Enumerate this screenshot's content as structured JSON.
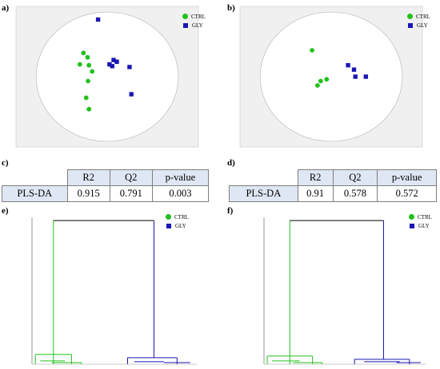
{
  "panels": {
    "a": "a)",
    "b": "b)",
    "c": "c)",
    "d": "d)",
    "e": "e)",
    "f": "f)"
  },
  "legend": [
    {
      "label": "CTRL",
      "color": "#22c01e",
      "shape": "circle"
    },
    {
      "label": "GLY",
      "color": "#1a16b4",
      "shape": "square"
    }
  ],
  "tables": [
    {
      "headers": [
        "",
        "R2",
        "Q2",
        "p-value"
      ],
      "row": [
        "PLS-DA",
        "0.915",
        "0.791",
        "0.003"
      ]
    },
    {
      "headers": [
        "",
        "R2",
        "Q2",
        "p-value"
      ],
      "row": [
        "PLS-DA",
        "0.91",
        "0.578",
        "0.572"
      ]
    }
  ],
  "chart_data": [
    {
      "type": "scatter",
      "xlim": [
        -20,
        20
      ],
      "ylim": [
        -8,
        8
      ],
      "series": [
        {
          "name": "CTRL",
          "color": "#22c01e",
          "points": [
            [
              -5.2,
              2.7
            ],
            [
              -4.3,
              2.2
            ],
            [
              -6.0,
              1.4
            ],
            [
              -4.0,
              1.3
            ],
            [
              -3.3,
              0.6
            ],
            [
              -4.2,
              -0.5
            ],
            [
              -4.6,
              -2.4
            ],
            [
              -4.0,
              -3.7
            ]
          ]
        },
        {
          "name": "GLY",
          "color": "#1a16b4",
          "points": [
            [
              -2.0,
              6.5
            ],
            [
              1.4,
              1.9
            ],
            [
              2.1,
              1.7
            ],
            [
              0.5,
              1.4
            ],
            [
              1.1,
              1.2
            ],
            [
              4.9,
              1.1
            ],
            [
              5.3,
              -2.0
            ]
          ]
        }
      ],
      "grid": false
    },
    {
      "type": "scatter",
      "xlim": [
        -20,
        20
      ],
      "ylim": [
        -8,
        8
      ],
      "series": [
        {
          "name": "CTRL",
          "color": "#22c01e",
          "points": [
            [
              -4.2,
              3.0
            ],
            [
              -1.0,
              -0.3
            ],
            [
              -2.3,
              -0.5
            ],
            [
              -3.0,
              -1.0
            ]
          ]
        },
        {
          "name": "GLY",
          "color": "#1a16b4",
          "points": [
            [
              3.7,
              1.3
            ],
            [
              5.0,
              0.8
            ],
            [
              7.6,
              0.0
            ],
            [
              5.3,
              0.0
            ]
          ]
        }
      ],
      "grid": false
    },
    {
      "type": "dendrogram",
      "ylim": [
        0,
        180
      ],
      "series": [
        {
          "name": "CTRL",
          "color": "#22c01e",
          "segments": [
            [
              [
                0.13,
                0
              ],
              [
                0.13,
                12
              ]
            ],
            [
              [
                0.02,
                12
              ],
              [
                0.24,
                12
              ]
            ],
            [
              [
                0.02,
                12
              ],
              [
                0.02,
                0
              ]
            ],
            [
              [
                0.24,
                12
              ],
              [
                0.24,
                0
              ]
            ],
            [
              [
                0.05,
                4
              ],
              [
                0.2,
                4
              ]
            ],
            [
              [
                0.12,
                2
              ],
              [
                0.3,
                2
              ]
            ],
            [
              [
                0.3,
                2
              ],
              [
                0.3,
                0
              ]
            ],
            [
              [
                0.13,
                12
              ],
              [
                0.13,
                176
              ]
            ]
          ]
        },
        {
          "name": "GLY",
          "color": "#1a16b4",
          "segments": [
            [
              [
                0.74,
                176
              ],
              [
                0.74,
                8
              ]
            ],
            [
              [
                0.58,
                8
              ],
              [
                0.88,
                8
              ]
            ],
            [
              [
                0.58,
                8
              ],
              [
                0.58,
                0
              ]
            ],
            [
              [
                0.88,
                8
              ],
              [
                0.88,
                0
              ]
            ],
            [
              [
                0.62,
                3
              ],
              [
                0.8,
                3
              ]
            ],
            [
              [
                0.8,
                2
              ],
              [
                0.96,
                2
              ]
            ]
          ]
        },
        {
          "name": "join",
          "color": "#000000",
          "segments": [
            [
              [
                0.13,
                176
              ],
              [
                0.74,
                176
              ]
            ]
          ]
        }
      ]
    },
    {
      "type": "dendrogram",
      "ylim": [
        0,
        180
      ],
      "series": [
        {
          "name": "CTRL",
          "color": "#22c01e",
          "segments": [
            [
              [
                0.16,
                0
              ],
              [
                0.16,
                10
              ]
            ],
            [
              [
                0.02,
                10
              ],
              [
                0.3,
                10
              ]
            ],
            [
              [
                0.02,
                10
              ],
              [
                0.02,
                0
              ]
            ],
            [
              [
                0.3,
                10
              ],
              [
                0.3,
                0
              ]
            ],
            [
              [
                0.05,
                4
              ],
              [
                0.22,
                4
              ]
            ],
            [
              [
                0.18,
                2
              ],
              [
                0.36,
                2
              ]
            ],
            [
              [
                0.36,
                2
              ],
              [
                0.36,
                0
              ]
            ],
            [
              [
                0.16,
                10
              ],
              [
                0.16,
                176
              ]
            ]
          ]
        },
        {
          "name": "GLY",
          "color": "#1a16b4",
          "segments": [
            [
              [
                0.74,
                176
              ],
              [
                0.74,
                6
              ]
            ],
            [
              [
                0.56,
                6
              ],
              [
                0.9,
                6
              ]
            ],
            [
              [
                0.56,
                6
              ],
              [
                0.56,
                0
              ]
            ],
            [
              [
                0.9,
                6
              ],
              [
                0.9,
                0
              ]
            ],
            [
              [
                0.62,
                3
              ],
              [
                0.84,
                3
              ]
            ],
            [
              [
                0.82,
                2
              ],
              [
                0.97,
                2
              ]
            ]
          ]
        },
        {
          "name": "join",
          "color": "#000000",
          "segments": [
            [
              [
                0.16,
                176
              ],
              [
                0.74,
                176
              ]
            ]
          ]
        }
      ]
    }
  ]
}
